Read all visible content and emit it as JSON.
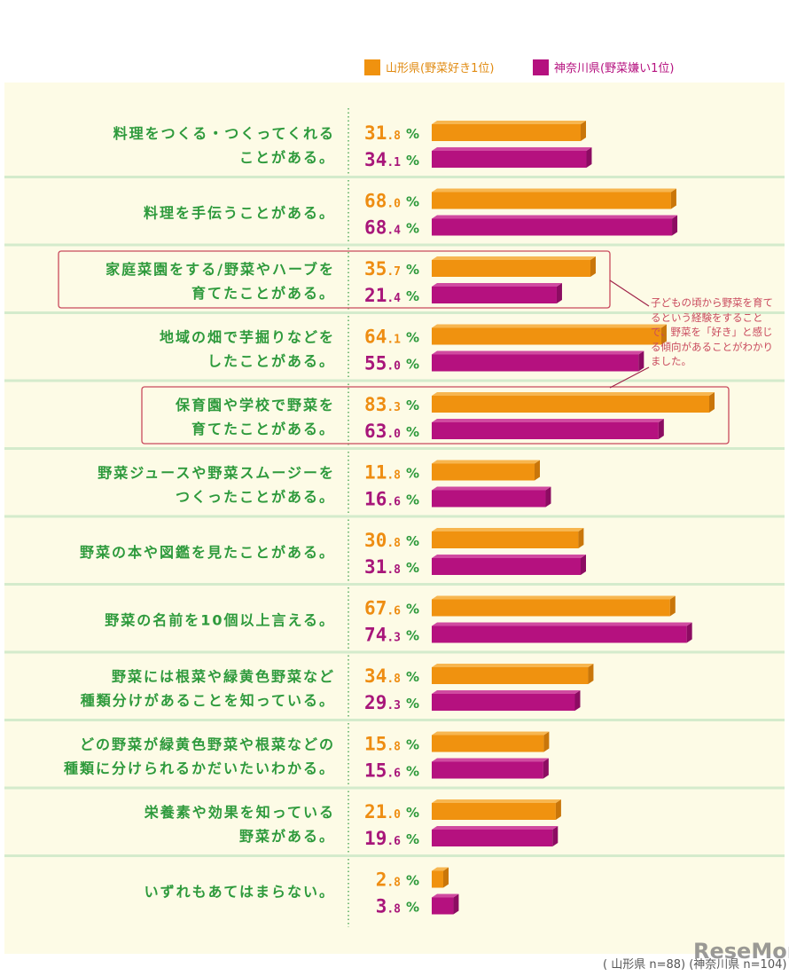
{
  "chart_data": {
    "type": "bar",
    "orientation": "horizontal",
    "unit": "%",
    "categories": [
      [
        "料理をつくる・つくってくれる",
        "ことがある。"
      ],
      [
        "料理を手伝うことがある。"
      ],
      [
        "家庭菜園をする/野菜やハーブを",
        "育てたことがある。"
      ],
      [
        "地域の畑で芋掘りなどを",
        "したことがある。"
      ],
      [
        "保育園や学校で野菜を",
        "育てたことがある。"
      ],
      [
        "野菜ジュースや野菜スムージーを",
        "つくったことがある。"
      ],
      [
        "野菜の本や図鑑を見たことがある。"
      ],
      [
        "野菜の名前を10個以上言える。"
      ],
      [
        "野菜には根菜や緑黄色野菜など",
        "種類分けがあることを知っている。"
      ],
      [
        "どの野菜が緑黄色野菜や根菜などの",
        "種類に分けられるかだいたいわかる。"
      ],
      [
        "栄養素や効果を知っている",
        "野菜がある。"
      ],
      [
        "いずれもあてはまらない。"
      ]
    ],
    "series": [
      {
        "name": "山形県(野菜好き1位)",
        "color": "#f0920f",
        "values": [
          31.8,
          68.0,
          35.7,
          64.1,
          83.3,
          11.8,
          30.8,
          67.6,
          34.8,
          15.8,
          21.0,
          2.8
        ]
      },
      {
        "name": "神奈川県(野菜嫌い1位)",
        "color": "#b5117f",
        "values": [
          34.1,
          68.4,
          21.4,
          55.0,
          63.0,
          16.6,
          31.8,
          74.3,
          29.3,
          15.6,
          19.6,
          3.8
        ]
      }
    ],
    "highlighted_categories": [
      2,
      4
    ],
    "legend_position": "top-right",
    "annotation": "子どもの頃から野菜を育てるという経験をすることで、野菜を「好き」と感じる傾向があることがわかりました。"
  },
  "footer": "( 山形県 n=88) (神奈川県 n=104)",
  "watermark": "ReseMom"
}
